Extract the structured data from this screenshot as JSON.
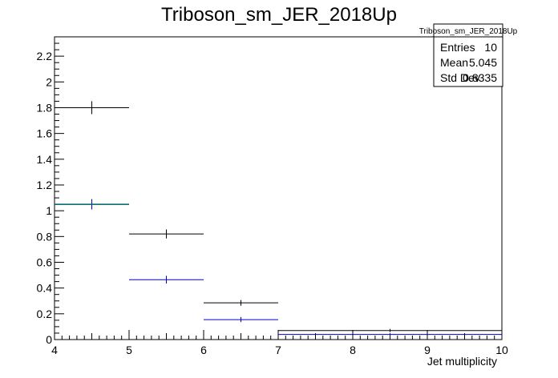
{
  "chart_data": {
    "type": "scatter",
    "title": "Triboson_sm_JER_2018Up",
    "xlabel": "Jet multiplicity",
    "ylabel": "",
    "xlim": [
      4,
      10
    ],
    "ylim": [
      0,
      2.35
    ],
    "x_tick_labels": [
      "4",
      "5",
      "6",
      "7",
      "8",
      "9",
      "10"
    ],
    "y_tick_labels": [
      "0",
      "0.2",
      "0.4",
      "0.6",
      "0.8",
      "1",
      "1.2",
      "1.4",
      "1.6",
      "1.8",
      "2",
      "2.2"
    ],
    "grid": false,
    "series": [
      {
        "color": "#000000",
        "bins": [
          {
            "xlo": 4,
            "xhi": 5,
            "y": 1.8,
            "err": 0.05
          },
          {
            "xlo": 5,
            "xhi": 6,
            "y": 0.82,
            "err": 0.035
          },
          {
            "xlo": 6,
            "xhi": 7,
            "y": 0.285,
            "err": 0.022
          },
          {
            "xlo": 7,
            "xhi": 10,
            "y": 0.07,
            "err": 0.012
          }
        ]
      },
      {
        "color": "#0000cc",
        "bins": [
          {
            "xlo": 4,
            "xhi": 5,
            "y": 1.05,
            "err": 0.04
          },
          {
            "xlo": 5,
            "xhi": 6,
            "y": 0.465,
            "err": 0.03
          },
          {
            "xlo": 6,
            "xhi": 7,
            "y": 0.155,
            "err": 0.02
          },
          {
            "xlo": 7,
            "xhi": 10,
            "y": 0.04,
            "err": 0.01
          }
        ]
      }
    ],
    "overlay_segment": {
      "xlo": 4,
      "xhi": 5,
      "y": 1.05,
      "color": "#006666"
    },
    "stats_box": {
      "title": "Triboson_sm_JER_2018Up",
      "rows": [
        {
          "label": "Entries",
          "value": "10"
        },
        {
          "label": "Mean",
          "value": "5.045"
        },
        {
          "label": "Std Dev",
          "value": "0.8335"
        }
      ]
    }
  }
}
